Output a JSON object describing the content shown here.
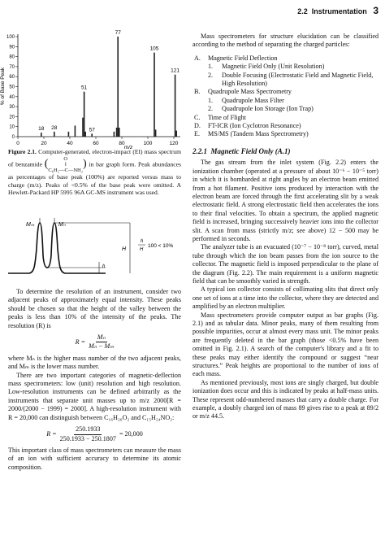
{
  "header": {
    "section": "2.2",
    "title": "Instrumentation",
    "page": "3"
  },
  "figure_2_1": {
    "chart": {
      "type": "bar",
      "ylabel": "% of Base Peak",
      "xlabel": "m/z",
      "color": "#222222",
      "x": [
        18,
        28,
        39,
        44,
        50,
        51,
        52,
        57,
        74,
        76,
        77,
        78,
        105,
        106,
        121,
        122
      ],
      "values": [
        4,
        5,
        5,
        11,
        19,
        45,
        5,
        3,
        5,
        9,
        100,
        9,
        84,
        7,
        62,
        6
      ],
      "peak_labels": [
        "18",
        "28",
        null,
        null,
        null,
        "51",
        null,
        "57",
        null,
        null,
        "77",
        null,
        "105",
        null,
        "121",
        null
      ],
      "xlim": [
        0,
        125
      ],
      "ylim": [
        0,
        100
      ],
      "xticks": [
        0,
        20,
        40,
        60,
        80,
        100,
        120
      ],
      "yticks": [
        0,
        10,
        20,
        30,
        40,
        50,
        60,
        70,
        80,
        90,
        100
      ]
    },
    "caption": {
      "label": "Figure 2.1.",
      "text_before": "Computer-generated, electron-impact (EI) mass spectrum of benzamide",
      "formula_top": "O",
      "formula_bottom": "C₆H₅—C—NH₂",
      "text_after": "in bar graph form. Peak abundances as percentages of base peak (100%) are reported versus mass to charge (m/z). Peaks of <0.5% of the base peak were omitted. A Hewlett-Packard HP 5995 96A GC-MS instrument was used."
    }
  },
  "figure_resolution": {
    "m_m": "Mₘ",
    "m_n": "Mₙ",
    "H": "H",
    "h": "h",
    "ratio_h": "h",
    "ratio_H": "H",
    "ratio_text": "100 < 10%"
  },
  "left": {
    "p1": "To determine the resolution of an instrument, consider two adjacent peaks of approximately equal intensity. These peaks should be chosen so that the height of the valley between the peaks is less than 10% of the intensity of the peaks. The resolution (R) is",
    "eq1": {
      "lhs": "R =",
      "num": "Mₙ",
      "den": "Mₙ − Mₘ"
    },
    "p2": "where Mₙ is the higher mass number of the two adjacent peaks, and Mₘ is the lower mass number.",
    "p3": "There are two important categories of magnetic-deflection mass spectrometers: low (unit) resolution and high resolution. Low-resolution instruments can be defined arbitrarily as the instruments that separate unit masses up to m/z 2000[R = 2000/(2000 − 1999) = 2000]. A high-resolution instrument with R = 20,000 can distinguish between C₁₆H₂₆O₂ and C₁₅H₂₄NO₂:",
    "eq2": {
      "lhs": "R =",
      "num": "250.1933",
      "den": "250.1933 − 250.1807",
      "rhs": "= 20,000"
    },
    "p4": "This important class of mass spectrometers can measure the mass of an ion with sufficient accuracy to determine its atomic composition."
  },
  "right": {
    "intro": "Mass spectrometers for structure elucidation can be classified according to the method of separating the charged particles:",
    "list": [
      {
        "mark": "A.",
        "text": "Magnetic Field Deflection",
        "items": [
          {
            "mark": "1.",
            "text": "Magnetic Field Only (Unit Resolution)"
          },
          {
            "mark": "2.",
            "text": "Double Focusing (Electrostatic Field and Magnetic Field, High Resolution)"
          }
        ]
      },
      {
        "mark": "B.",
        "text": "Quadrupole Mass Spectrometry",
        "items": [
          {
            "mark": "1.",
            "text": "Quadrupole Mass Filter"
          },
          {
            "mark": "2.",
            "text": "Quadrupole Ion Storage (Ion Trap)"
          }
        ]
      },
      {
        "mark": "C.",
        "text": "Time of Flight"
      },
      {
        "mark": "D.",
        "text": "FT-ICR (Ion Cyclotron Resonance)"
      },
      {
        "mark": "E.",
        "text": "MS/MS (Tandem Mass Spectrometry)"
      }
    ],
    "heading": {
      "number": "2.2.1",
      "title": "Magnetic Field Only (A.1)"
    },
    "paragraphs": [
      "The gas stream from the inlet system (Fig. 2.2) enters the ionization chamber (operated at a pressure of about 10⁻⁶ − 10⁻⁵ torr) in which it is bombarded at right angles by an electron beam emitted from a hot filament. Positive ions produced by interaction with the electron beam are forced through the first accelerating slit by a weak electrostatic field. A strong electrostatic field then accelerates the ions to their final velocities. To obtain a spectrum, the applied magnetic field is increased, bringing successively heavier ions into the collector slit. A scan from mass (strictly m/z; see above) 12 − 500 may be performed in seconds.",
      "The analyzer tube is an evacuated (10⁻⁷ − 10⁻⁸ torr), curved, metal tube through which the ion beam passes from the ion source to the collector. The magnetic field is imposed perpendicular to the plane of the diagram (Fig. 2.2). The main requirement is a uniform magnetic field that can be smoothly varied in strength.",
      "A typical ion collector consists of collimating slits that direct only one set of ions at a time into the collector, where they are detected and amplified by an electron multiplier.",
      "Mass spectrometers provide computer output as bar graphs (Fig. 2.1) and as tabular data. Minor peaks, many of them resulting from possible impurities, occur at almost every mass unit. The minor peaks are frequently deleted in the bar graph (those <0.5% have been omitted in Fig. 2.1). A search of the computer's library and a fit to these peaks may either identify the compound or suggest “near structures.” Peak heights are proportional to the number of ions of each mass.",
      "As mentioned previously, most ions are singly charged, but double ionization does occur and this is indicated by peaks at half-mass units. These represent odd-numbered masses that carry a double charge. For example, a doubly charged ion of mass 89 gives rise to a peak at 89/2 or m/z 44.5."
    ]
  }
}
